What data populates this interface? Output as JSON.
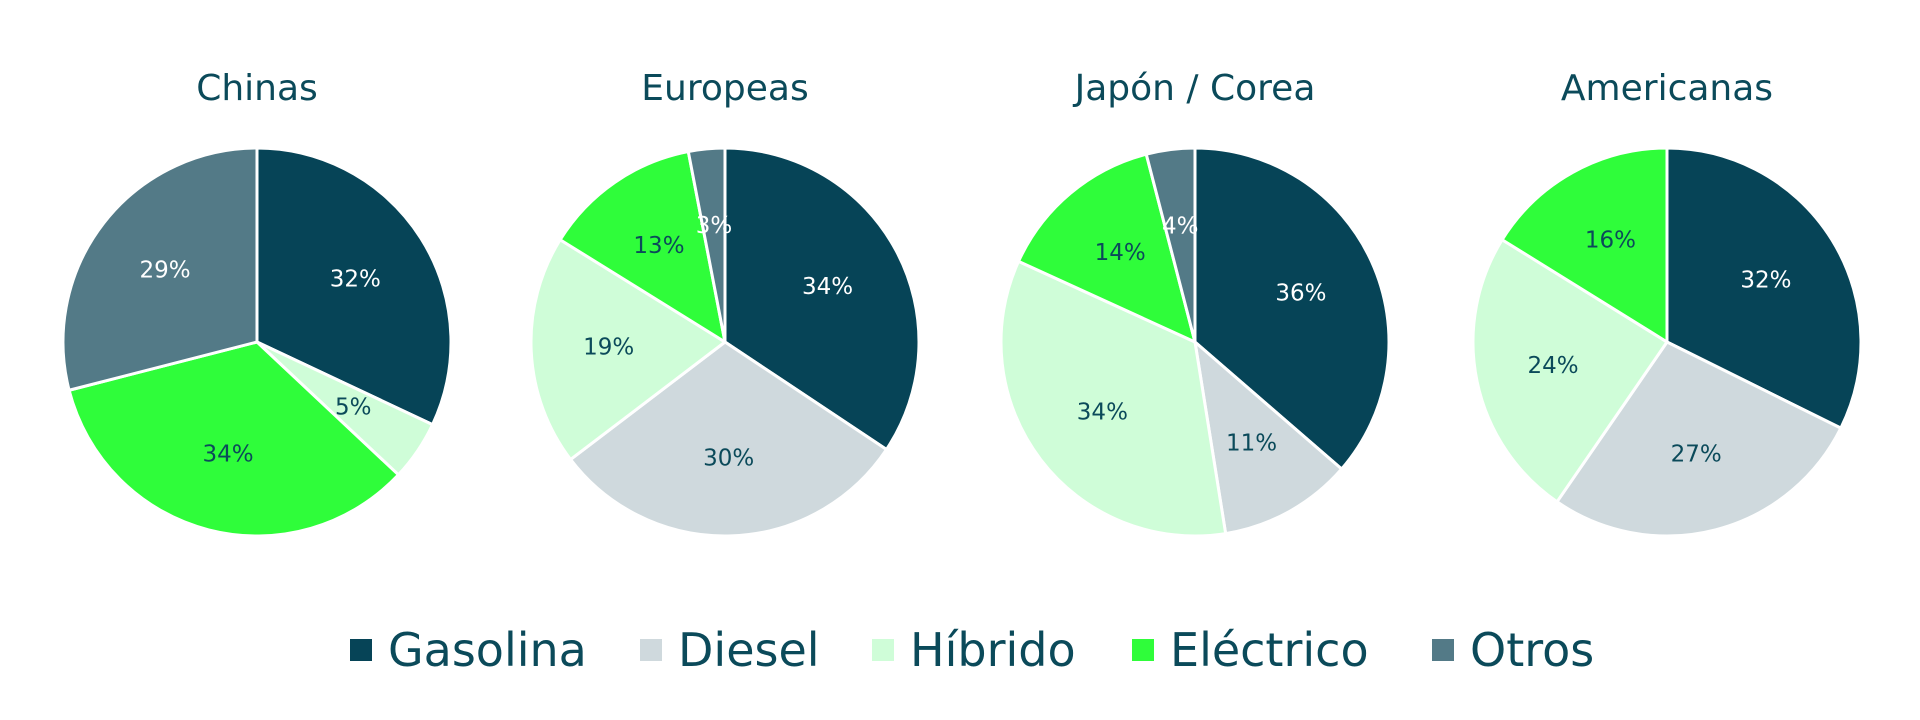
{
  "chart_data": {
    "type": "pie",
    "legend_position": "bottom",
    "categories": [
      "Gasolina",
      "Diesel",
      "Híbrido",
      "Eléctrico",
      "Otros"
    ],
    "colors": {
      "Gasolina": "#064457",
      "Diesel": "#cfd9dd",
      "Híbrido": "#cffdd8",
      "Eléctrico": "#2ffd3a",
      "Otros": "#537a87"
    },
    "label_colors": {
      "Gasolina": "#ffffff",
      "Diesel": "#0b4a5a",
      "Híbrido": "#0b4a5a",
      "Eléctrico": "#0b4a5a",
      "Otros": "#ffffff"
    },
    "pies": [
      {
        "title": "Chinas",
        "slices": [
          {
            "category": "Gasolina",
            "value": 32,
            "label": "32%"
          },
          {
            "category": "Híbrido",
            "value": 5,
            "label": "5%"
          },
          {
            "category": "Eléctrico",
            "value": 34,
            "label": "34%"
          },
          {
            "category": "Otros",
            "value": 29,
            "label": "29%"
          }
        ]
      },
      {
        "title": "Europeas",
        "slices": [
          {
            "category": "Gasolina",
            "value": 34,
            "label": "34%"
          },
          {
            "category": "Diesel",
            "value": 30,
            "label": "30%"
          },
          {
            "category": "Híbrido",
            "value": 19,
            "label": "19%"
          },
          {
            "category": "Eléctrico",
            "value": 13,
            "label": "13%"
          },
          {
            "category": "Otros",
            "value": 3,
            "label": "3%"
          }
        ]
      },
      {
        "title": "Japón / Corea",
        "slices": [
          {
            "category": "Gasolina",
            "value": 36,
            "label": "36%"
          },
          {
            "category": "Diesel",
            "value": 11,
            "label": "11%"
          },
          {
            "category": "Híbrido",
            "value": 34,
            "label": "34%"
          },
          {
            "category": "Eléctrico",
            "value": 14,
            "label": "14%"
          },
          {
            "category": "Otros",
            "value": 4,
            "label": "4%"
          }
        ]
      },
      {
        "title": "Americanas",
        "slices": [
          {
            "category": "Gasolina",
            "value": 32,
            "label": "32%"
          },
          {
            "category": "Diesel",
            "value": 27,
            "label": "27%"
          },
          {
            "category": "Híbrido",
            "value": 24,
            "label": "24%"
          },
          {
            "category": "Eléctrico",
            "value": 16,
            "label": "16%"
          }
        ]
      }
    ]
  }
}
